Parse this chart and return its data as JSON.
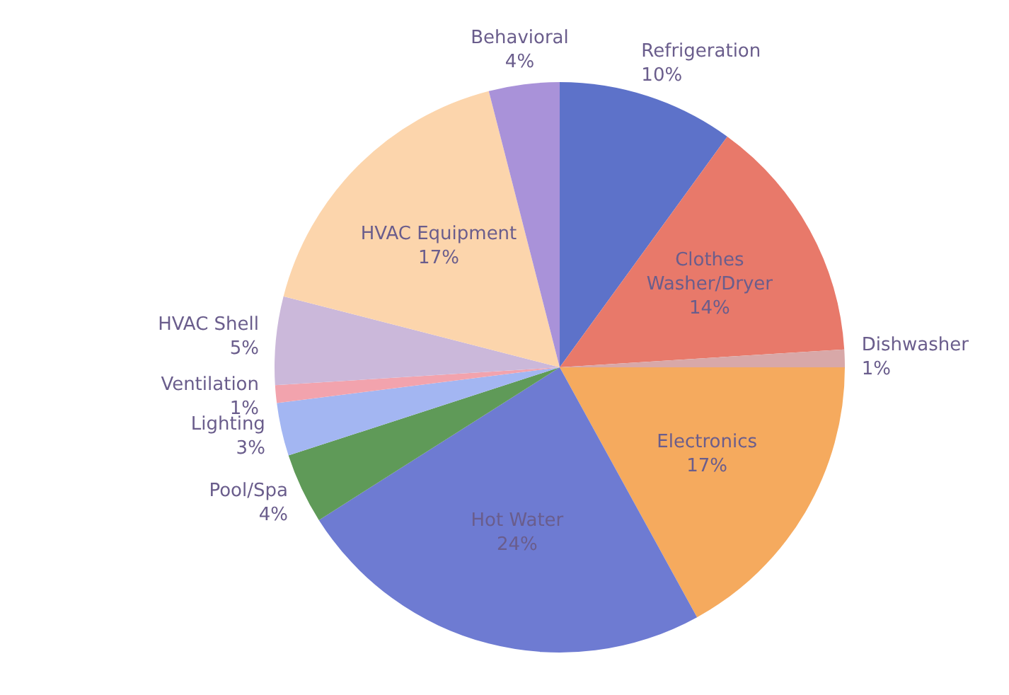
{
  "chart_data": {
    "type": "pie",
    "categories": [
      "Refrigeration",
      "Clothes Washer/Dryer",
      "Dishwasher",
      "Electronics",
      "Hot Water",
      "Pool/Spa",
      "Lighting",
      "Ventilation",
      "HVAC Shell",
      "HVAC Equipment",
      "Behavioral"
    ],
    "values": [
      10,
      14,
      1,
      17,
      24,
      4,
      3,
      1,
      5,
      17,
      4
    ],
    "value_labels": [
      "10%",
      "14%",
      "1%",
      "17%",
      "24%",
      "4%",
      "3%",
      "1%",
      "5%",
      "17%",
      "4%"
    ],
    "colors": [
      "#5d72c9",
      "#e8796a",
      "#d8a8a8",
      "#f5aa5e",
      "#6e7bd2",
      "#5f9a58",
      "#a3b6f2",
      "#f2a3ad",
      "#cbb8da",
      "#fcd5ac",
      "#a992d9"
    ],
    "legend": false
  }
}
